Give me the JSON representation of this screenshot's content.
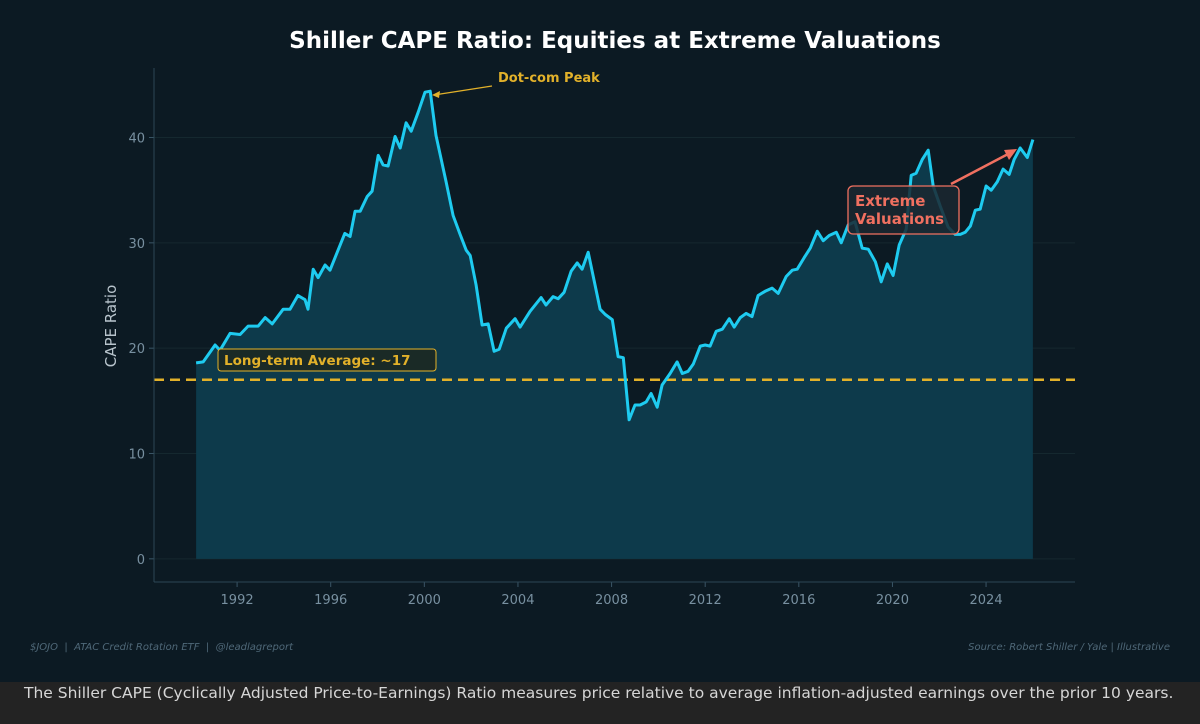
{
  "colors": {
    "background": "#0c1a23",
    "line": "#1ecbf0",
    "fill": "#0d3a4b",
    "average": "#e2b12a",
    "annotation": "#f07060",
    "title": "#ffffff",
    "tick": "#7890a0"
  },
  "chart_data": {
    "type": "area",
    "title": "Shiller CAPE Ratio: Equities at Extreme Valuations",
    "xlabel": "",
    "ylabel": "CAPE Ratio",
    "xlim": [
      1988.45,
      2027.8
    ],
    "ylim": [
      -2.2,
      46.6
    ],
    "xticks": [
      1992,
      1996,
      2000,
      2004,
      2008,
      2012,
      2016,
      2020,
      2024
    ],
    "yticks": [
      0,
      10,
      20,
      30,
      40
    ],
    "grid": true,
    "reference_line": {
      "value": 17,
      "label": "Long-term Average: ~17"
    },
    "annotations": [
      {
        "text": "Dot-com Peak",
        "x": 2000.1,
        "y": 44.3
      },
      {
        "text": "Extreme\nValuations",
        "x": 2025.3,
        "y": 39.0
      }
    ],
    "series": [
      {
        "x": [
          1990.25,
          1990.55,
          1991.06,
          1991.27,
          1991.7,
          1992.13,
          1992.47,
          1992.9,
          1993.2,
          1993.5,
          1993.97,
          1994.26,
          1994.6,
          1994.9,
          1995.03,
          1995.25,
          1995.46,
          1995.76,
          1995.97,
          1996.6,
          1996.83,
          1997.04,
          1997.26,
          1997.56,
          1997.77,
          1998.03,
          1998.24,
          1998.45,
          1998.75,
          1998.97,
          1999.22,
          1999.44,
          1999.74,
          2000.03,
          2000.25,
          2000.5,
          2000.93,
          2001.23,
          2001.53,
          2001.79,
          2001.96,
          2002.21,
          2002.47,
          2002.73,
          2002.98,
          2003.2,
          2003.5,
          2003.88,
          2004.09,
          2004.52,
          2004.99,
          2005.2,
          2005.5,
          2005.72,
          2005.97,
          2006.27,
          2006.53,
          2006.74,
          2007.0,
          2007.51,
          2007.73,
          2008.03,
          2008.28,
          2008.5,
          2008.75,
          2009.0,
          2009.22,
          2009.48,
          2009.69,
          2009.95,
          2010.16,
          2010.5,
          2010.8,
          2011.02,
          2011.27,
          2011.49,
          2011.79,
          2012.0,
          2012.21,
          2012.47,
          2012.73,
          2013.03,
          2013.24,
          2013.5,
          2013.75,
          2014.0,
          2014.26,
          2014.56,
          2014.86,
          2015.12,
          2015.46,
          2015.72,
          2015.93,
          2016.23,
          2016.49,
          2016.79,
          2017.04,
          2017.3,
          2017.6,
          2017.81,
          2018.11,
          2018.4,
          2018.71,
          2018.97,
          2019.27,
          2019.52,
          2019.78,
          2020.03,
          2020.29,
          2020.59,
          2020.8,
          2021.01,
          2021.27,
          2021.53,
          2021.74,
          2022.04,
          2022.38,
          2022.68,
          2022.9,
          2023.11,
          2023.33,
          2023.54,
          2023.75,
          2024.0,
          2024.22,
          2024.48,
          2024.73,
          2024.99,
          2025.2,
          2025.46,
          2025.76,
          2026.0
        ],
        "values": [
          18.6,
          18.7,
          20.3,
          19.8,
          21.4,
          21.3,
          22.1,
          22.1,
          22.9,
          22.3,
          23.7,
          23.7,
          25.0,
          24.6,
          23.7,
          27.5,
          26.7,
          27.9,
          27.4,
          30.9,
          30.6,
          33.0,
          33.0,
          34.4,
          34.9,
          38.3,
          37.4,
          37.3,
          40.1,
          39.0,
          41.4,
          40.6,
          42.4,
          44.3,
          44.4,
          40.2,
          35.8,
          32.6,
          30.8,
          29.3,
          28.8,
          26.0,
          22.2,
          22.3,
          19.7,
          19.9,
          21.9,
          22.8,
          22.0,
          23.5,
          24.8,
          24.1,
          24.9,
          24.7,
          25.3,
          27.3,
          28.1,
          27.5,
          29.1,
          23.7,
          23.2,
          22.7,
          19.2,
          19.1,
          13.2,
          14.6,
          14.6,
          14.9,
          15.7,
          14.4,
          16.5,
          17.6,
          18.7,
          17.6,
          17.8,
          18.5,
          20.2,
          20.3,
          20.2,
          21.6,
          21.8,
          22.8,
          22.0,
          22.9,
          23.3,
          23.0,
          25.0,
          25.4,
          25.7,
          25.2,
          26.8,
          27.4,
          27.5,
          28.6,
          29.5,
          31.1,
          30.2,
          30.7,
          31.0,
          30.0,
          31.7,
          32.0,
          29.5,
          29.4,
          28.2,
          26.3,
          28.0,
          26.9,
          29.8,
          31.3,
          36.4,
          36.6,
          37.9,
          38.8,
          35.4,
          33.5,
          31.5,
          30.8,
          30.8,
          31.0,
          31.6,
          33.1,
          33.2,
          35.4,
          35.0,
          35.8,
          37.0,
          36.5,
          37.9,
          39.0,
          38.1,
          39.8
        ]
      }
    ]
  },
  "footer": {
    "left": "$JOJO  |  ATAC Credit Rotation ETF  |  @leadlagreport",
    "right": "Source: Robert Shiller / Yale | Illustrative"
  },
  "caption": "The Shiller CAPE (Cyclically Adjusted Price-to-Earnings) Ratio measures price relative to average inflation-adjusted earnings over the prior 10 years."
}
